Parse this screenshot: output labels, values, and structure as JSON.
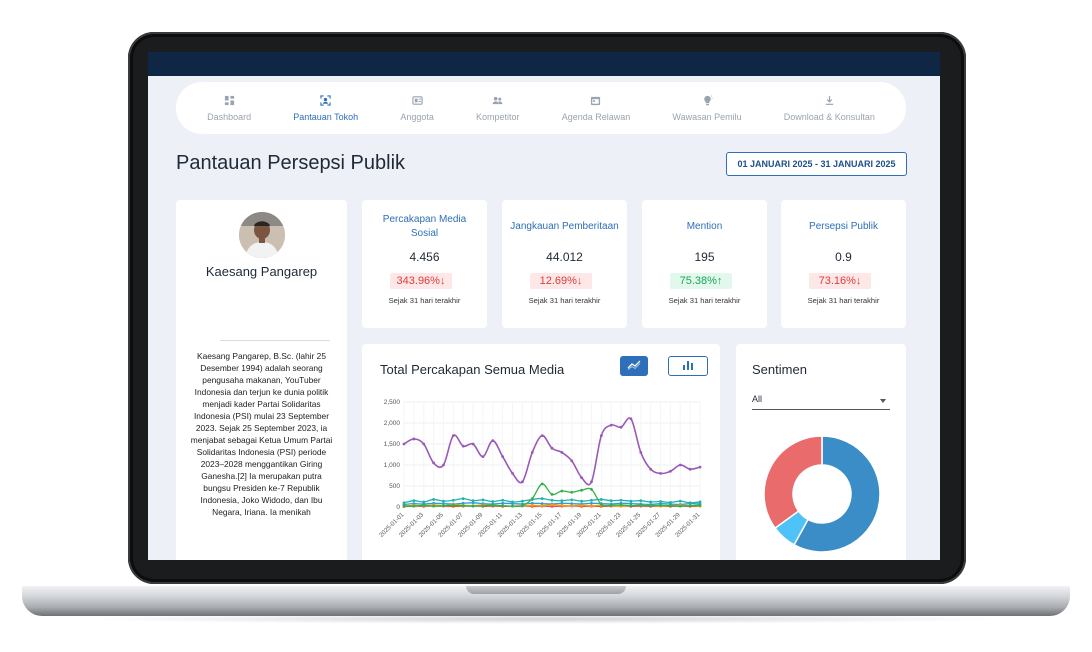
{
  "nav": {
    "items": [
      {
        "label": "Dashboard",
        "icon": "dashboard-icon"
      },
      {
        "label": "Pantauan Tokoh",
        "icon": "user-scan-icon"
      },
      {
        "label": "Anggota",
        "icon": "id-card-icon"
      },
      {
        "label": "Kompetitor",
        "icon": "users-icon"
      },
      {
        "label": "Agenda Relawan",
        "icon": "calendar-icon"
      },
      {
        "label": "Wawasan Pemilu",
        "icon": "lightbulb-icon"
      },
      {
        "label": "Download & Konsultan",
        "icon": "download-icon"
      }
    ],
    "active_index": 1
  },
  "page": {
    "title": "Pantauan Persepsi Publik",
    "date_range": "01 JANUARI 2025 - 31 JANUARI 2025"
  },
  "profile": {
    "name": "Kaesang Pangarep",
    "bio": "Kaesang Pangarep, B.Sc. (lahir 25 Desember 1994) adalah seorang pengusaha makanan, YouTuber Indonesia dan terjun ke dunia politik menjadi kader Partai Solidaritas Indonesia (PSI) mulai 23 September 2023. Sejak 25 September 2023, ia menjabat sebagai Ketua Umum Partai Solidaritas Indonesia (PSI) periode 2023–2028 menggantikan Giring Ganesha.[2] Ia merupakan putra bungsu Presiden ke-7 Republik Indonesia, Joko Widodo, dan Ibu Negara, Iriana. Ia menikah"
  },
  "stats": [
    {
      "title": "Percakapan Media Sosial",
      "value": "4.456",
      "change": "343.96%",
      "direction": "down",
      "since": "Sejak 31 hari terakhir"
    },
    {
      "title": "Jangkauan Pemberitaan",
      "value": "44.012",
      "change": "12.69%",
      "direction": "down",
      "since": "Sejak 31 hari terakhir"
    },
    {
      "title": "Mention",
      "value": "195",
      "change": "75.38%",
      "direction": "up",
      "since": "Sejak 31 hari terakhir"
    },
    {
      "title": "Persepsi Publik",
      "value": "0.9",
      "change": "73.16%",
      "direction": "down",
      "since": "Sejak 31 hari terakhir"
    }
  ],
  "colors": {
    "accent": "#2d6fb8",
    "down": "#e23b3b",
    "up": "#19a558",
    "header": "#0f2744"
  },
  "chart": {
    "title": "Total Percakapan Semua Media",
    "toggle_line_icon": "line-chart-icon",
    "toggle_bar_icon": "bar-chart-icon"
  },
  "chart_data": {
    "type": "line",
    "ylim": [
      0,
      2500
    ],
    "yticks": [
      "0",
      "500",
      "1,000",
      "1,500",
      "2,000",
      "2,500"
    ],
    "x": [
      "2025-01-01",
      "2025-01-02",
      "2025-01-03",
      "2025-01-04",
      "2025-01-05",
      "2025-01-06",
      "2025-01-07",
      "2025-01-08",
      "2025-01-09",
      "2025-01-10",
      "2025-01-11",
      "2025-01-12",
      "2025-01-13",
      "2025-01-14",
      "2025-01-15",
      "2025-01-16",
      "2025-01-17",
      "2025-01-18",
      "2025-01-19",
      "2025-01-20",
      "2025-01-21",
      "2025-01-22",
      "2025-01-23",
      "2025-01-24",
      "2025-01-25",
      "2025-01-26",
      "2025-01-27",
      "2025-01-28",
      "2025-01-29",
      "2025-01-30",
      "2025-01-31"
    ],
    "x_tick_labels": [
      "2025-01-01",
      "2025-01-03",
      "2025-01-05",
      "2025-01-07",
      "2025-01-09",
      "2025-01-11",
      "2025-01-13",
      "2025-01-15",
      "2025-01-17",
      "2025-01-19",
      "2025-01-21",
      "2025-01-23",
      "2025-01-25",
      "2025-01-27",
      "2025-01-29",
      "2025-01-31"
    ],
    "series": [
      {
        "color": "#9b59b6",
        "values": [
          1500,
          1620,
          1500,
          1050,
          1000,
          1700,
          1450,
          1500,
          1200,
          1580,
          1200,
          800,
          600,
          1300,
          1700,
          1400,
          1300,
          1100,
          700,
          600,
          1700,
          1950,
          1900,
          2100,
          1300,
          900,
          800,
          850,
          1000,
          900,
          950
        ]
      },
      {
        "color": "#2fb344",
        "values": [
          30,
          20,
          40,
          20,
          30,
          40,
          30,
          20,
          30,
          40,
          30,
          20,
          30,
          200,
          550,
          300,
          380,
          350,
          400,
          420,
          60,
          40,
          50,
          30,
          40,
          30,
          40,
          30,
          20,
          30,
          40
        ]
      },
      {
        "color": "#20b2aa",
        "values": [
          100,
          150,
          120,
          180,
          140,
          160,
          200,
          150,
          170,
          130,
          160,
          120,
          140,
          180,
          200,
          160,
          150,
          170,
          140,
          160,
          180,
          150,
          160,
          140,
          150,
          120,
          130,
          110,
          140,
          100,
          120
        ]
      },
      {
        "color": "#f39c12",
        "values": [
          20,
          40,
          30,
          50,
          30,
          60,
          40,
          30,
          50,
          40,
          30,
          20,
          30,
          40,
          30,
          50,
          40,
          30,
          40,
          30,
          40,
          30,
          20,
          30,
          40,
          30,
          20,
          30,
          40,
          30,
          20
        ]
      },
      {
        "color": "#e74c3c",
        "values": [
          10,
          20,
          15,
          25,
          20,
          15,
          20,
          25,
          15,
          20,
          15,
          20,
          25,
          15,
          20,
          15,
          20,
          25,
          15,
          20,
          15,
          20,
          25,
          15,
          20,
          15,
          20,
          15,
          20,
          15,
          20
        ]
      },
      {
        "color": "#3498db",
        "values": [
          60,
          80,
          70,
          90,
          80,
          70,
          90,
          100,
          80,
          70,
          90,
          80,
          70,
          90,
          80,
          70,
          90,
          80,
          70,
          90,
          80,
          70,
          90,
          80,
          70,
          60,
          80,
          70,
          60,
          80,
          70
        ]
      }
    ]
  },
  "sentiment": {
    "title": "Sentimen",
    "filter_value": "All",
    "chart_data": {
      "type": "pie",
      "slices": [
        {
          "value": 58,
          "color": "#3a8dc7"
        },
        {
          "value": 7,
          "color": "#4fc3f7"
        },
        {
          "value": 35,
          "color": "#e96b6b"
        }
      ]
    }
  }
}
